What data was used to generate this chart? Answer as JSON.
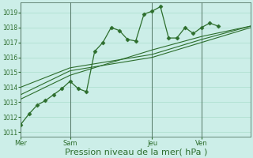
{
  "background_color": "#cceee8",
  "grid_color": "#aaddcc",
  "line_color": "#2d6e2d",
  "marker": "D",
  "marker_size": 2.5,
  "ylabel_ticks": [
    1011,
    1012,
    1013,
    1014,
    1015,
    1016,
    1017,
    1018,
    1019
  ],
  "ylim": [
    1010.7,
    1019.7
  ],
  "xlabel": "Pression niveau de la mer( hPa )",
  "xlabel_fontsize": 8,
  "xtick_labels": [
    "Mer",
    "Sam",
    "Jeu",
    "Ven"
  ],
  "xtick_positions": [
    0,
    36,
    96,
    132
  ],
  "total_hours": 168,
  "series": [
    {
      "has_markers": true,
      "points": [
        [
          0,
          1011.5
        ],
        [
          6,
          1012.2
        ],
        [
          12,
          1012.8
        ],
        [
          18,
          1013.1
        ],
        [
          24,
          1013.5
        ],
        [
          30,
          1013.9
        ],
        [
          36,
          1014.4
        ],
        [
          42,
          1013.9
        ],
        [
          48,
          1013.7
        ],
        [
          54,
          1016.4
        ],
        [
          60,
          1017.0
        ],
        [
          66,
          1018.0
        ],
        [
          72,
          1017.8
        ],
        [
          78,
          1017.2
        ],
        [
          84,
          1017.1
        ],
        [
          90,
          1018.9
        ],
        [
          96,
          1019.1
        ],
        [
          102,
          1019.4
        ],
        [
          108,
          1017.3
        ],
        [
          114,
          1017.3
        ],
        [
          120,
          1018.0
        ],
        [
          126,
          1017.6
        ],
        [
          132,
          1018.0
        ],
        [
          138,
          1018.3
        ],
        [
          144,
          1018.1
        ]
      ]
    },
    {
      "has_markers": false,
      "points": [
        [
          0,
          1013.2
        ],
        [
          36,
          1014.8
        ],
        [
          96,
          1016.5
        ],
        [
          132,
          1017.4
        ],
        [
          168,
          1018.1
        ]
      ]
    },
    {
      "has_markers": false,
      "points": [
        [
          0,
          1013.5
        ],
        [
          36,
          1015.1
        ],
        [
          96,
          1016.0
        ],
        [
          132,
          1017.0
        ],
        [
          168,
          1018.0
        ]
      ]
    },
    {
      "has_markers": false,
      "points": [
        [
          0,
          1014.0
        ],
        [
          36,
          1015.3
        ],
        [
          96,
          1016.2
        ],
        [
          132,
          1017.2
        ],
        [
          168,
          1018.1
        ]
      ]
    }
  ]
}
